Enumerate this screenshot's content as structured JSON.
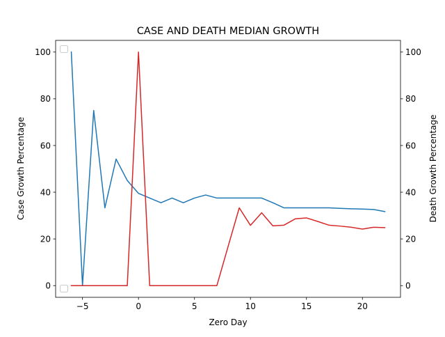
{
  "chart_data": {
    "type": "line",
    "title": "CASE AND DEATH MEDIAN GROWTH",
    "xlabel": "Zero Day",
    "ylabel_left": "Case Growth Percentage",
    "ylabel_right": "Death Growth Percentage",
    "xlim": [
      -7.4,
      23.4
    ],
    "ylim_left": [
      -5,
      105
    ],
    "ylim_right": [
      -5,
      105
    ],
    "x_ticks": [
      {
        "value": -5,
        "label": "−5"
      },
      {
        "value": 0,
        "label": "0"
      },
      {
        "value": 5,
        "label": "5"
      },
      {
        "value": 10,
        "label": "10"
      },
      {
        "value": 15,
        "label": "15"
      },
      {
        "value": 20,
        "label": "20"
      }
    ],
    "y_ticks_left": [
      {
        "value": 0,
        "label": "0"
      },
      {
        "value": 20,
        "label": "20"
      },
      {
        "value": 40,
        "label": "40"
      },
      {
        "value": 60,
        "label": "60"
      },
      {
        "value": 80,
        "label": "80"
      },
      {
        "value": 100,
        "label": "100"
      }
    ],
    "y_ticks_right": [
      {
        "value": 0,
        "label": "0"
      },
      {
        "value": 20,
        "label": "20"
      },
      {
        "value": 40,
        "label": "40"
      },
      {
        "value": 60,
        "label": "60"
      },
      {
        "value": 80,
        "label": "80"
      },
      {
        "value": 100,
        "label": "100"
      }
    ],
    "grid": false,
    "legend": "top-left and bottom-left, empty",
    "series": [
      {
        "axis": "left",
        "color": "#1f77b4",
        "x": [
          -6,
          -5,
          -4,
          -3,
          -2,
          -1,
          0,
          1,
          2,
          3,
          4,
          5,
          6,
          7,
          8,
          9,
          10,
          11,
          12,
          13,
          14,
          15,
          16,
          17,
          18,
          19,
          20,
          21,
          22
        ],
        "y": [
          100,
          0,
          75,
          33.3,
          54.2,
          45,
          39.5,
          37.5,
          35.5,
          37.5,
          35.5,
          37.5,
          38.8,
          37.5,
          37.5,
          37.5,
          37.5,
          37.5,
          35.5,
          33.3,
          33.3,
          33.3,
          33.3,
          33.3,
          33.1,
          32.9,
          32.8,
          32.6,
          31.7
        ]
      },
      {
        "axis": "right",
        "color": "#d62728",
        "x": [
          -6,
          -5,
          -4,
          -3,
          -2,
          -1,
          0,
          1,
          2,
          3,
          4,
          5,
          6,
          7,
          8,
          9,
          10,
          11,
          12,
          13,
          14,
          15,
          16,
          17,
          18,
          19,
          20,
          21,
          22
        ],
        "y": [
          0,
          0,
          0,
          0,
          0,
          0,
          100,
          0,
          0,
          0,
          0,
          0,
          0,
          0,
          16.7,
          33.3,
          25.8,
          31.2,
          25.6,
          25.9,
          28.6,
          29,
          27.5,
          25.9,
          25.5,
          25,
          24.2,
          25,
          24.8
        ]
      }
    ]
  }
}
